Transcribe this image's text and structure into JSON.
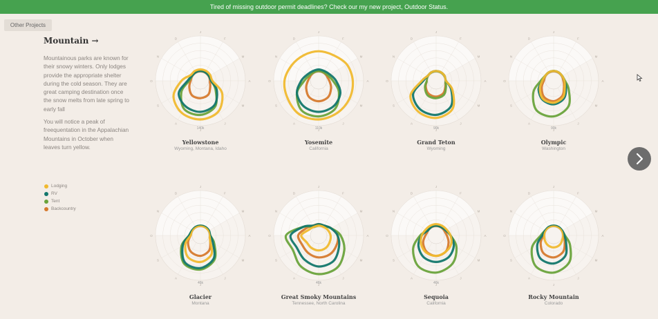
{
  "banner": {
    "text": "Tired of missing outdoor permit deadlines? Check our my new project, Outdoor Status."
  },
  "other_projects_label": "Other Projects",
  "sidebar": {
    "title": "Mountain →",
    "paragraph1": "Mountainous parks are known for their snowy winters. Only lodges provide the appropriate shelter during the cold season. They are great camping destination once the snow melts from late spring to early fall",
    "paragraph2": "You will notice a peak of freequentation in the Appalachian Mountains in October when leaves turn yellow."
  },
  "legend": [
    {
      "label": "Lodging",
      "color": "#f0b92f"
    },
    {
      "label": "RV",
      "color": "#13776c"
    },
    {
      "label": "Tent",
      "color": "#6aa33c"
    },
    {
      "label": "Backcountry",
      "color": "#d67a2e"
    }
  ],
  "icons": {
    "next": "chevron-right-icon",
    "cursor": "mouse-pointer-icon"
  },
  "chart_data": {
    "type": "radar",
    "axes": [
      "J",
      "F",
      "M",
      "A",
      "M",
      "J",
      "J",
      "A",
      "S",
      "O",
      "N",
      "D"
    ],
    "series_names": [
      "Lodging",
      "RV",
      "Tent",
      "Backcountry"
    ],
    "parks": [
      {
        "name": "Yellowstone",
        "state": "Wyoming, Montana, Idaho",
        "scale_label": "140k",
        "series": [
          {
            "name": "Lodging",
            "values": [
              0.1,
              0.1,
              0.1,
              0.12,
              0.55,
              0.9,
              1.0,
              0.95,
              0.75,
              0.35,
              0.1,
              0.1
            ]
          },
          {
            "name": "RV",
            "values": [
              0.05,
              0.05,
              0.05,
              0.08,
              0.35,
              0.65,
              0.75,
              0.7,
              0.55,
              0.15,
              0.05,
              0.05
            ]
          },
          {
            "name": "Tent",
            "values": [
              0.05,
              0.05,
              0.05,
              0.08,
              0.3,
              0.7,
              0.85,
              0.8,
              0.45,
              0.1,
              0.05,
              0.05
            ]
          },
          {
            "name": "Backcountry",
            "values": [
              0.02,
              0.02,
              0.02,
              0.03,
              0.1,
              0.25,
              0.3,
              0.28,
              0.15,
              0.05,
              0.02,
              0.02
            ]
          }
        ]
      },
      {
        "name": "Yosemite",
        "state": "California",
        "scale_label": "110k",
        "series": [
          {
            "name": "Lodging",
            "values": [
              0.7,
              0.7,
              0.8,
              0.85,
              0.9,
              0.95,
              1.0,
              1.0,
              0.9,
              0.85,
              0.75,
              0.7
            ]
          },
          {
            "name": "RV",
            "values": [
              0.1,
              0.1,
              0.15,
              0.3,
              0.55,
              0.7,
              0.75,
              0.7,
              0.55,
              0.3,
              0.15,
              0.1
            ]
          },
          {
            "name": "Tent",
            "values": [
              0.05,
              0.05,
              0.08,
              0.2,
              0.5,
              0.8,
              0.9,
              0.85,
              0.55,
              0.2,
              0.08,
              0.05
            ]
          },
          {
            "name": "Backcountry",
            "values": [
              0.02,
              0.02,
              0.03,
              0.08,
              0.2,
              0.35,
              0.4,
              0.35,
              0.2,
              0.08,
              0.03,
              0.02
            ]
          }
        ]
      },
      {
        "name": "Grand Teton",
        "state": "Wyoming",
        "scale_label": "90k",
        "series": [
          {
            "name": "Lodging",
            "values": [
              0.05,
              0.05,
              0.05,
              0.05,
              0.35,
              0.8,
              0.95,
              0.9,
              0.7,
              0.2,
              0.05,
              0.05
            ]
          },
          {
            "name": "RV",
            "values": [
              0.05,
              0.05,
              0.05,
              0.05,
              0.3,
              0.7,
              0.85,
              0.8,
              0.6,
              0.15,
              0.05,
              0.05
            ]
          },
          {
            "name": "Tent",
            "values": [
              0.02,
              0.02,
              0.02,
              0.02,
              0.1,
              0.25,
              0.3,
              0.28,
              0.15,
              0.03,
              0.02,
              0.02
            ]
          },
          {
            "name": "Backcountry",
            "values": [
              0.02,
              0.02,
              0.02,
              0.02,
              0.08,
              0.2,
              0.25,
              0.22,
              0.12,
              0.03,
              0.02,
              0.02
            ]
          }
        ]
      },
      {
        "name": "Olympic",
        "state": "Washington",
        "scale_label": "90k",
        "series": [
          {
            "name": "Lodging",
            "values": [
              0.05,
              0.05,
              0.05,
              0.08,
              0.15,
              0.35,
              0.45,
              0.42,
              0.25,
              0.1,
              0.05,
              0.05
            ]
          },
          {
            "name": "RV",
            "values": [
              0.05,
              0.05,
              0.05,
              0.08,
              0.2,
              0.4,
              0.5,
              0.45,
              0.3,
              0.1,
              0.05,
              0.05
            ]
          },
          {
            "name": "Tent",
            "values": [
              0.05,
              0.05,
              0.05,
              0.1,
              0.3,
              0.7,
              0.9,
              0.85,
              0.5,
              0.15,
              0.05,
              0.05
            ]
          },
          {
            "name": "Backcountry",
            "values": [
              0.03,
              0.03,
              0.03,
              0.05,
              0.12,
              0.3,
              0.4,
              0.35,
              0.18,
              0.05,
              0.03,
              0.03
            ]
          }
        ]
      },
      {
        "name": "Glacier",
        "state": "Montana",
        "scale_label": "46k",
        "series": [
          {
            "name": "Lodging",
            "values": [
              0.02,
              0.02,
              0.02,
              0.02,
              0.1,
              0.45,
              0.6,
              0.55,
              0.3,
              0.05,
              0.02,
              0.02
            ]
          },
          {
            "name": "RV",
            "values": [
              0.05,
              0.05,
              0.05,
              0.05,
              0.2,
              0.6,
              0.8,
              0.75,
              0.4,
              0.1,
              0.05,
              0.05
            ]
          },
          {
            "name": "Tent",
            "values": [
              0.05,
              0.05,
              0.05,
              0.05,
              0.25,
              0.65,
              0.85,
              0.8,
              0.45,
              0.1,
              0.05,
              0.05
            ]
          },
          {
            "name": "Backcountry",
            "values": [
              0.03,
              0.03,
              0.03,
              0.03,
              0.1,
              0.3,
              0.4,
              0.35,
              0.2,
              0.05,
              0.03,
              0.03
            ]
          }
        ]
      },
      {
        "name": "Great Smoky Mountains",
        "state": "Tennessee, North Carolina",
        "scale_label": "46k",
        "series": [
          {
            "name": "Lodging",
            "values": [
              0.05,
              0.05,
              0.08,
              0.12,
              0.15,
              0.2,
              0.22,
              0.2,
              0.18,
              0.3,
              0.1,
              0.05
            ]
          },
          {
            "name": "RV",
            "values": [
              0.1,
              0.1,
              0.2,
              0.35,
              0.5,
              0.7,
              0.75,
              0.65,
              0.55,
              0.65,
              0.3,
              0.1
            ]
          },
          {
            "name": "Tent",
            "values": [
              0.05,
              0.08,
              0.2,
              0.45,
              0.7,
              0.95,
              1.0,
              0.9,
              0.7,
              0.8,
              0.3,
              0.05
            ]
          },
          {
            "name": "Backcountry",
            "values": [
              0.1,
              0.1,
              0.2,
              0.35,
              0.4,
              0.45,
              0.45,
              0.4,
              0.35,
              0.4,
              0.2,
              0.1
            ]
          }
        ]
      },
      {
        "name": "Sequoia",
        "state": "California",
        "scale_label": "46k",
        "series": [
          {
            "name": "Lodging",
            "values": [
              0.1,
              0.1,
              0.12,
              0.2,
              0.3,
              0.35,
              0.4,
              0.38,
              0.3,
              0.2,
              0.12,
              0.1
            ]
          },
          {
            "name": "RV",
            "values": [
              0.05,
              0.05,
              0.08,
              0.2,
              0.4,
              0.55,
              0.6,
              0.55,
              0.4,
              0.2,
              0.05,
              0.05
            ]
          },
          {
            "name": "Tent",
            "values": [
              0.05,
              0.05,
              0.08,
              0.2,
              0.5,
              0.8,
              0.95,
              0.9,
              0.6,
              0.25,
              0.05,
              0.05
            ]
          },
          {
            "name": "Backcountry",
            "values": [
              0.02,
              0.02,
              0.03,
              0.08,
              0.2,
              0.35,
              0.4,
              0.35,
              0.22,
              0.08,
              0.02,
              0.02
            ]
          }
        ]
      },
      {
        "name": "Rocky Mountain",
        "state": "Colorado",
        "scale_label": "",
        "series": [
          {
            "name": "Lodging",
            "values": [
              0.02,
              0.02,
              0.02,
              0.02,
              0.05,
              0.1,
              0.12,
              0.1,
              0.06,
              0.03,
              0.02,
              0.02
            ]
          },
          {
            "name": "RV",
            "values": [
              0.05,
              0.05,
              0.05,
              0.08,
              0.2,
              0.5,
              0.65,
              0.6,
              0.35,
              0.1,
              0.05,
              0.05
            ]
          },
          {
            "name": "Tent",
            "values": [
              0.05,
              0.05,
              0.05,
              0.1,
              0.35,
              0.75,
              0.95,
              0.9,
              0.55,
              0.15,
              0.05,
              0.05
            ]
          },
          {
            "name": "Backcountry",
            "values": [
              0.03,
              0.03,
              0.03,
              0.05,
              0.15,
              0.35,
              0.45,
              0.4,
              0.22,
              0.06,
              0.03,
              0.03
            ]
          }
        ]
      }
    ]
  }
}
